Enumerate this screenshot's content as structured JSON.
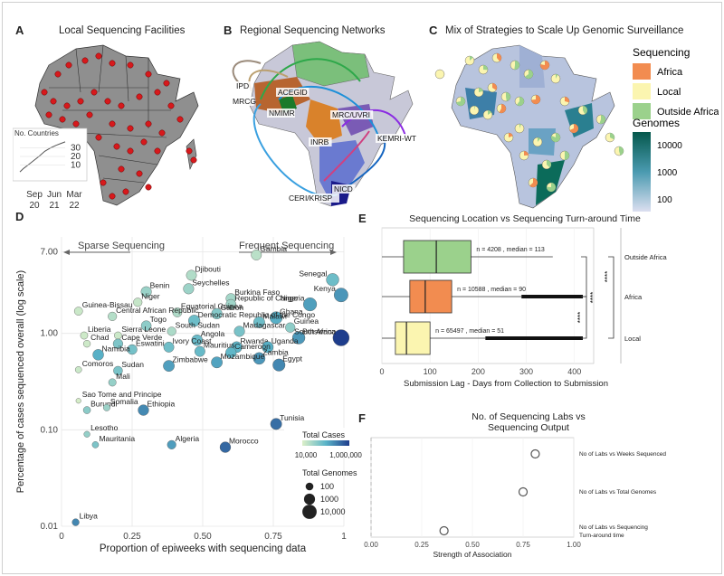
{
  "panels": {
    "A": {
      "label": "A",
      "title": "Local Sequencing Facilities",
      "inset": {
        "title": "No. Countries",
        "yticks": [
          "30",
          "20",
          "10"
        ],
        "xticks": [
          [
            "Sep",
            "20"
          ],
          [
            "Jun",
            "21"
          ],
          [
            "Mar",
            "22"
          ]
        ],
        "curve": [
          [
            0,
            2
          ],
          [
            0.08,
            6
          ],
          [
            0.18,
            10
          ],
          [
            0.3,
            15
          ],
          [
            0.42,
            20
          ],
          [
            0.55,
            26
          ],
          [
            0.68,
            30
          ],
          [
            0.8,
            33
          ],
          [
            0.9,
            35
          ],
          [
            1,
            37
          ]
        ]
      },
      "land_color": "#8f8f8f",
      "point_color": "#d7191c"
    },
    "B": {
      "label": "B",
      "title": "Regional Sequencing Networks",
      "hubs": [
        "IPD",
        "MRCG",
        "ACEGID",
        "NMIMR",
        "MRC/UVRI",
        "INRB",
        "KEMRI-WT",
        "CERI/KRISP",
        "NICD"
      ]
    },
    "C": {
      "label": "C",
      "title": "Mix of Strategies to Scale Up Genomic Surveillance",
      "legend_seq_title": "Sequencing",
      "legend_seq": [
        {
          "name": "Africa",
          "color": "#f28c50"
        },
        {
          "name": "Local",
          "color": "#fbf5b0"
        },
        {
          "name": "Outside Africa",
          "color": "#9bd18c"
        }
      ],
      "legend_gen_title": "Genomes",
      "legend_gen_ticks": [
        "10000",
        "1000",
        "100"
      ]
    },
    "E": {
      "label": "E",
      "title": "Sequencing Location vs Sequencing Turn-around Time",
      "xlabel": "Submission Lag - Days from Collection to Submission",
      "sig": "****"
    },
    "F": {
      "label": "F",
      "title_lines": [
        "No. of Sequencing Labs vs",
        "Sequencing Output"
      ],
      "xlabel": "Strength of Association"
    },
    "D": {
      "label": "D",
      "annot_left": "Sparse Sequencing",
      "annot_right": "Frequent Sequencing",
      "legend_cases_title": "Total Cases",
      "legend_cases_ticks": [
        "10,000",
        "1,000,000"
      ],
      "legend_gen_title": "Total Genomes",
      "legend_gen_ticks": [
        "100",
        "1000",
        "10,000"
      ]
    }
  },
  "chart_data": [
    {
      "panel": "D",
      "type": "scatter",
      "xlabel": "Proportion of epiweeks with sequencing data",
      "ylabel": "Percentage of cases sequenced overall (log scale)",
      "xlim": [
        0,
        1
      ],
      "ylim": [
        0.01,
        10
      ],
      "y_scale": "log",
      "xticks": [
        "0",
        "0.25",
        "0.50",
        "0.75",
        "1"
      ],
      "yticks": [
        "7.00",
        "1.00",
        "0.10",
        "0.01"
      ],
      "points": [
        {
          "label": "Gambia",
          "x": 0.69,
          "y": 6.5,
          "cases": 12000,
          "genomes": 600
        },
        {
          "label": "Djibouti",
          "x": 0.46,
          "y": 4.0,
          "cases": 15000,
          "genomes": 600
        },
        {
          "label": "Senegal",
          "x": 0.96,
          "y": 3.6,
          "cases": 86000,
          "genomes": 3000
        },
        {
          "label": "Benin",
          "x": 0.3,
          "y": 2.7,
          "cases": 27000,
          "genomes": 700
        },
        {
          "label": "Seychelles",
          "x": 0.45,
          "y": 2.9,
          "cases": 25000,
          "genomes": 700
        },
        {
          "label": "Burkina Faso",
          "x": 0.6,
          "y": 2.3,
          "cases": 21000,
          "genomes": 500
        },
        {
          "label": "Kenya",
          "x": 0.99,
          "y": 2.5,
          "cases": 323000,
          "genomes": 8000
        },
        {
          "label": "Niger",
          "x": 0.27,
          "y": 2.1,
          "cases": 9000,
          "genomes": 200
        },
        {
          "label": "Republic of Congo",
          "x": 0.6,
          "y": 2.0,
          "cases": 24000,
          "genomes": 500
        },
        {
          "label": "Nigeria",
          "x": 0.88,
          "y": 2.0,
          "cases": 255000,
          "genomes": 5000
        },
        {
          "label": "Guinea-Bissau",
          "x": 0.06,
          "y": 1.7,
          "cases": 8000,
          "genomes": 150
        },
        {
          "label": "Equatorial Guinea",
          "x": 0.41,
          "y": 1.65,
          "cases": 16000,
          "genomes": 300
        },
        {
          "label": "Gabon",
          "x": 0.55,
          "y": 1.6,
          "cases": 47000,
          "genomes": 800
        },
        {
          "label": "Ghana",
          "x": 0.76,
          "y": 1.45,
          "cases": 161000,
          "genomes": 2500
        },
        {
          "label": "Central African Republic",
          "x": 0.18,
          "y": 1.5,
          "cases": 14000,
          "genomes": 200
        },
        {
          "label": "Democratic Republic of the Congo",
          "x": 0.47,
          "y": 1.35,
          "cases": 88000,
          "genomes": 1500
        },
        {
          "label": "Malawi",
          "x": 0.7,
          "y": 1.3,
          "cases": 86000,
          "genomes": 1200
        },
        {
          "label": "Togo",
          "x": 0.3,
          "y": 1.2,
          "cases": 37000,
          "genomes": 500
        },
        {
          "label": "South Sudan",
          "x": 0.39,
          "y": 1.05,
          "cases": 17000,
          "genomes": 200
        },
        {
          "label": "Guinea",
          "x": 0.81,
          "y": 1.15,
          "cases": 36000,
          "genomes": 400
        },
        {
          "label": "Madagascar",
          "x": 0.63,
          "y": 1.05,
          "cases": 64000,
          "genomes": 700
        },
        {
          "label": "Liberia",
          "x": 0.08,
          "y": 0.95,
          "cases": 7400,
          "genomes": 80
        },
        {
          "label": "Sierra Leone",
          "x": 0.2,
          "y": 0.95,
          "cases": 7700,
          "genomes": 80
        },
        {
          "label": "Botswana",
          "x": 0.84,
          "y": 0.9,
          "cases": 305000,
          "genomes": 3000
        },
        {
          "label": "Angola",
          "x": 0.48,
          "y": 0.85,
          "cases": 99000,
          "genomes": 900
        },
        {
          "label": "South Africa",
          "x": 0.99,
          "y": 0.9,
          "cases": 3900000,
          "genomes": 40000
        },
        {
          "label": "Chad",
          "x": 0.09,
          "y": 0.78,
          "cases": 7400,
          "genomes": 60
        },
        {
          "label": "Cape Verde",
          "x": 0.2,
          "y": 0.78,
          "cases": 56000,
          "genomes": 400
        },
        {
          "label": "Ivory Coast",
          "x": 0.38,
          "y": 0.72,
          "cases": 82000,
          "genomes": 600
        },
        {
          "label": "Rwanda",
          "x": 0.62,
          "y": 0.72,
          "cases": 130000,
          "genomes": 1000
        },
        {
          "label": "Uganda",
          "x": 0.73,
          "y": 0.72,
          "cases": 164000,
          "genomes": 1200
        },
        {
          "label": "Eswatini",
          "x": 0.25,
          "y": 0.68,
          "cases": 70000,
          "genomes": 450
        },
        {
          "label": "Mauritius",
          "x": 0.49,
          "y": 0.65,
          "cases": 100000,
          "genomes": 600
        },
        {
          "label": "Cameroon",
          "x": 0.6,
          "y": 0.63,
          "cases": 120000,
          "genomes": 800
        },
        {
          "label": "Namibia",
          "x": 0.13,
          "y": 0.6,
          "cases": 160000,
          "genomes": 900
        },
        {
          "label": "Zambia",
          "x": 0.7,
          "y": 0.55,
          "cases": 315000,
          "genomes": 1800
        },
        {
          "label": "Mozambique",
          "x": 0.55,
          "y": 0.5,
          "cases": 225000,
          "genomes": 1100
        },
        {
          "label": "Egypt",
          "x": 0.77,
          "y": 0.47,
          "cases": 500000,
          "genomes": 2500
        },
        {
          "label": "Zimbabwe",
          "x": 0.38,
          "y": 0.46,
          "cases": 250000,
          "genomes": 1100
        },
        {
          "label": "Sudan",
          "x": 0.2,
          "y": 0.41,
          "cases": 62000,
          "genomes": 250
        },
        {
          "label": "Comoros",
          "x": 0.06,
          "y": 0.42,
          "cases": 8000,
          "genomes": 40
        },
        {
          "label": "Mali",
          "x": 0.18,
          "y": 0.31,
          "cases": 30000,
          "genomes": 90
        },
        {
          "label": "Sao Tome and Principe",
          "x": 0.06,
          "y": 0.2,
          "cases": 6000,
          "genomes": 15
        },
        {
          "label": "Burundi",
          "x": 0.09,
          "y": 0.16,
          "cases": 40000,
          "genomes": 70
        },
        {
          "label": "Somalia",
          "x": 0.16,
          "y": 0.17,
          "cases": 26000,
          "genomes": 50
        },
        {
          "label": "Ethiopia",
          "x": 0.29,
          "y": 0.16,
          "cases": 470000,
          "genomes": 800
        },
        {
          "label": "Tunisia",
          "x": 0.76,
          "y": 0.115,
          "cases": 1000000,
          "genomes": 1200
        },
        {
          "label": "Lesotho",
          "x": 0.09,
          "y": 0.09,
          "cases": 32000,
          "genomes": 30
        },
        {
          "label": "Mauritania",
          "x": 0.12,
          "y": 0.07,
          "cases": 58000,
          "genomes": 40
        },
        {
          "label": "Algeria",
          "x": 0.39,
          "y": 0.07,
          "cases": 265000,
          "genomes": 200
        },
        {
          "label": "Morocco",
          "x": 0.58,
          "y": 0.066,
          "cases": 1160000,
          "genomes": 800
        },
        {
          "label": "Libya",
          "x": 0.05,
          "y": 0.011,
          "cases": 500000,
          "genomes": 60
        }
      ]
    },
    {
      "panel": "E",
      "type": "box",
      "title": "Sequencing Location vs Sequencing Turn-around Time",
      "xlabel": "Submission Lag - Days from Collection to Submission",
      "xlim": [
        0,
        440
      ],
      "xticks": [
        "0",
        "100",
        "200",
        "300",
        "400"
      ],
      "categories": [
        "Outside Africa",
        "Africa",
        "Local"
      ],
      "boxes": [
        {
          "name": "Outside Africa",
          "color": "#9bd18c",
          "q1": 45,
          "median": 113,
          "q3": 185,
          "wmin": 0,
          "wmax": 355,
          "annotation": "n = 4208 , median = 113"
        },
        {
          "name": "Africa",
          "color": "#f28c50",
          "q1": 58,
          "median": 90,
          "q3": 145,
          "wmin": 0,
          "wmax": 290,
          "annotation": "n = 10588 , median = 90"
        },
        {
          "name": "Local",
          "color": "#fbf5b0",
          "q1": 28,
          "median": 51,
          "q3": 100,
          "wmin": 0,
          "wmax": 215,
          "annotation": "n = 65497 , median = 51"
        }
      ]
    },
    {
      "panel": "F",
      "type": "dot",
      "title": "No. of Sequencing Labs vs Sequencing Output",
      "xlabel": "Strength of Association",
      "xlim": [
        0,
        1
      ],
      "xticks": [
        "0.00",
        "0.25",
        "0.50",
        "0.75",
        "1.00"
      ],
      "categories": [
        "No of Labs vs Weeks Sequenced",
        "No of Labs vs Total Genomes",
        "No of Labs vs Sequencing Turn-around time"
      ],
      "values": [
        0.81,
        0.75,
        0.36
      ]
    }
  ]
}
